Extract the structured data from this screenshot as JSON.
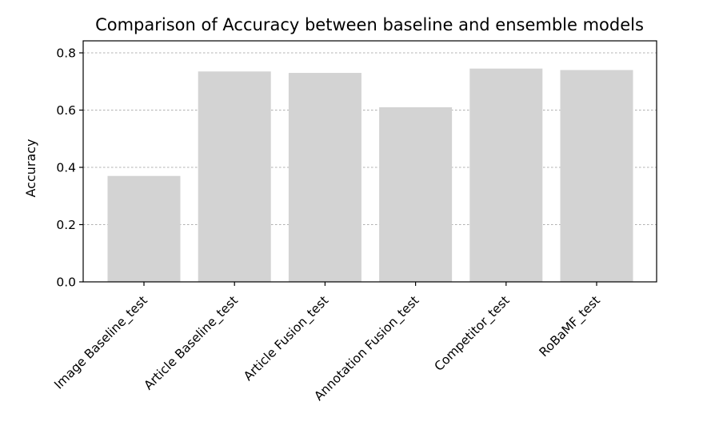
{
  "chart_data": {
    "type": "bar",
    "title": "Comparison of Accuracy between baseline and ensemble models",
    "xlabel": "",
    "ylabel": "Accuracy",
    "categories": [
      "Image Baseline_test",
      "Article Baseline_test",
      "Article Fusion_test",
      "Annotation Fusion_test",
      "Competitor_test",
      "RoBaMF_test"
    ],
    "values": [
      0.37,
      0.735,
      0.73,
      0.61,
      0.745,
      0.74
    ],
    "ylim": [
      0,
      0.8
    ],
    "yticks": [
      0.0,
      0.2,
      0.4,
      0.6,
      0.8
    ],
    "ytick_labels": [
      "0.0",
      "0.2",
      "0.4",
      "0.6",
      "0.8"
    ],
    "grid": "y-dashed",
    "bar_color": "#d3d3d3"
  }
}
